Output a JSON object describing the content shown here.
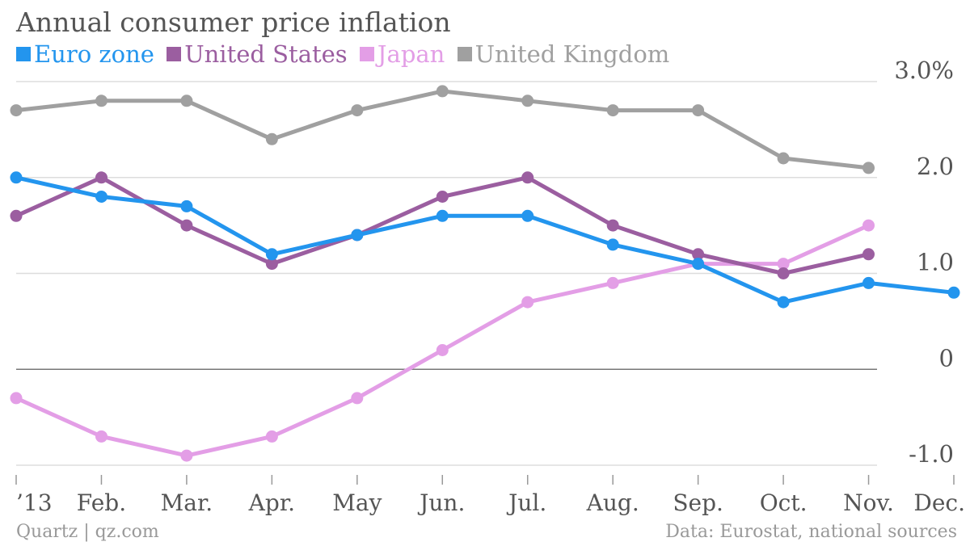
{
  "title": "Annual consumer price inflation",
  "source": "Data: Eurostat, national sources",
  "credit": "Quartz | qz.com",
  "colors": {
    "grid": "#dddddd",
    "zero": "#777777",
    "tick_text": "#555555"
  },
  "chart_data": {
    "type": "line",
    "categories": [
      "’13",
      "Feb.",
      "Mar.",
      "Apr.",
      "May",
      "Jun.",
      "Jul.",
      "Aug.",
      "Sep.",
      "Oct.",
      "Nov.",
      "Dec."
    ],
    "ylim": [
      -1.0,
      3.0
    ],
    "yticks": [
      {
        "value": 3.0,
        "label": "3.0%"
      },
      {
        "value": 2.0,
        "label": "2.0"
      },
      {
        "value": 1.0,
        "label": "1.0"
      },
      {
        "value": 0,
        "label": "0"
      },
      {
        "value": -1.0,
        "label": "-1.0"
      }
    ],
    "grid": true,
    "legend_position": "top-left",
    "series": [
      {
        "name": "United Kingdom",
        "color": "#a0a0a0",
        "values": [
          2.7,
          2.8,
          2.8,
          2.4,
          2.7,
          2.9,
          2.8,
          2.7,
          2.7,
          2.2,
          2.1,
          null
        ]
      },
      {
        "name": "Japan",
        "color": "#e39ee6",
        "values": [
          -0.3,
          -0.7,
          -0.9,
          -0.7,
          -0.3,
          0.2,
          0.7,
          0.9,
          1.1,
          1.1,
          1.5,
          null
        ]
      },
      {
        "name": "United States",
        "color": "#9b5ea0",
        "values": [
          1.6,
          2.0,
          1.5,
          1.1,
          1.4,
          1.8,
          2.0,
          1.5,
          1.2,
          1.0,
          1.2,
          null
        ]
      },
      {
        "name": "Euro zone",
        "color": "#2395ee",
        "values": [
          2.0,
          1.8,
          1.7,
          1.2,
          1.4,
          1.6,
          1.6,
          1.3,
          1.1,
          0.7,
          0.9,
          0.8
        ]
      }
    ],
    "legend_order": [
      "Euro zone",
      "United States",
      "Japan",
      "United Kingdom"
    ]
  }
}
